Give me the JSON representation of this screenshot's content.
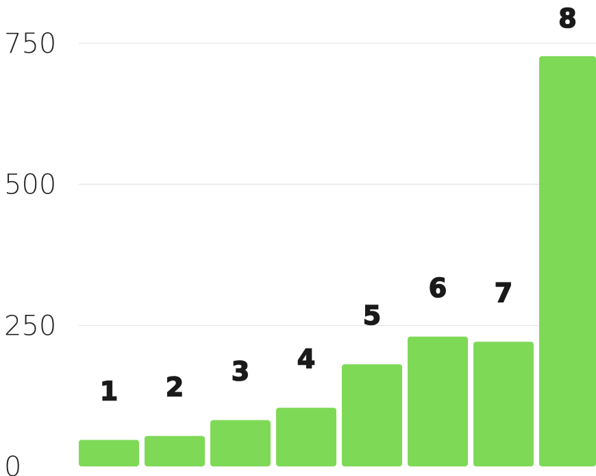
{
  "chart_data": {
    "type": "bar",
    "title": "",
    "xlabel": "",
    "ylabel": "",
    "categories": [
      "1",
      "2",
      "3",
      "4",
      "5",
      "6",
      "7",
      "8"
    ],
    "values": [
      47,
      54,
      82,
      104,
      181,
      230,
      221,
      727
    ],
    "ylim": [
      0,
      750
    ],
    "yticks": [
      0,
      250,
      500,
      750
    ],
    "ytick_labels": [
      "0",
      "250",
      "500",
      "750"
    ],
    "grid": true,
    "legend": "none",
    "bar_color": "#7ed957",
    "label_color": "#1a1a1a",
    "grid_color": "#dedede"
  }
}
